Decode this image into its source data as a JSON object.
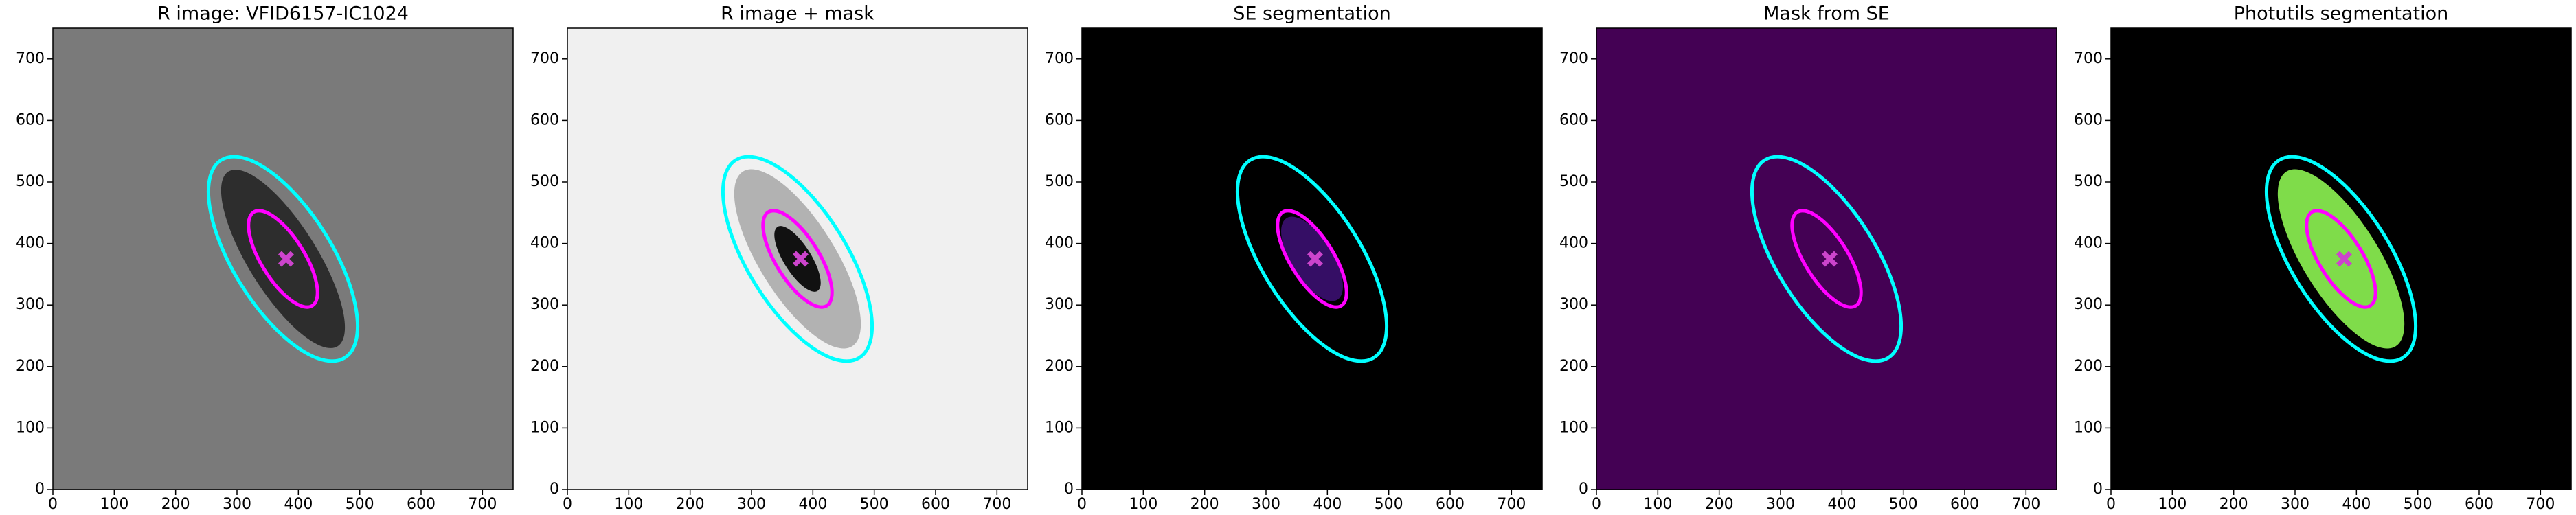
{
  "chart_data": [
    {
      "type": "image",
      "title": "R image: VFID6157-IC1024",
      "background": "#7a7a7a",
      "xlim": [
        0,
        750
      ],
      "ylim": [
        0,
        750
      ],
      "xticks": [
        0,
        100,
        200,
        300,
        400,
        500,
        600,
        700
      ],
      "yticks": [
        0,
        100,
        200,
        300,
        400,
        500,
        600,
        700
      ],
      "ellipses": [
        {
          "x": 375,
          "y": 375,
          "semi_major": 190,
          "semi_minor": 80,
          "angle": 122,
          "color": "#00ffff"
        },
        {
          "x": 375,
          "y": 375,
          "semi_major": 90,
          "semi_minor": 35,
          "angle": 122,
          "color": "#ff00ff"
        }
      ],
      "marker": {
        "x": 380,
        "y": 375,
        "color": "#cc44cc"
      }
    },
    {
      "type": "image",
      "title": "R image + mask",
      "background": "#f0f0f0",
      "xlim": [
        0,
        750
      ],
      "ylim": [
        0,
        750
      ],
      "xticks": [
        0,
        100,
        200,
        300,
        400,
        500,
        600,
        700
      ],
      "yticks": [
        0,
        100,
        200,
        300,
        400,
        500,
        600,
        700
      ],
      "ellipses": [
        {
          "x": 375,
          "y": 375,
          "semi_major": 190,
          "semi_minor": 80,
          "angle": 122,
          "color": "#00ffff"
        },
        {
          "x": 375,
          "y": 375,
          "semi_major": 90,
          "semi_minor": 35,
          "angle": 122,
          "color": "#ff00ff"
        }
      ],
      "marker": {
        "x": 380,
        "y": 375,
        "color": "#cc44cc"
      }
    },
    {
      "type": "image",
      "title": "SE segmentation",
      "background": "#000000",
      "xlim": [
        0,
        750
      ],
      "ylim": [
        0,
        750
      ],
      "xticks": [
        0,
        100,
        200,
        300,
        400,
        500,
        600,
        700
      ],
      "yticks": [
        0,
        100,
        200,
        300,
        400,
        500,
        600,
        700
      ],
      "ellipses": [
        {
          "x": 375,
          "y": 375,
          "semi_major": 190,
          "semi_minor": 80,
          "angle": 122,
          "color": "#00ffff"
        },
        {
          "x": 375,
          "y": 375,
          "semi_major": 90,
          "semi_minor": 35,
          "angle": 122,
          "color": "#ff00ff"
        }
      ],
      "marker": {
        "x": 380,
        "y": 375,
        "color": "#cc44cc"
      }
    },
    {
      "type": "image",
      "title": "Mask from SE",
      "background": "#440154",
      "xlim": [
        0,
        750
      ],
      "ylim": [
        0,
        750
      ],
      "xticks": [
        0,
        100,
        200,
        300,
        400,
        500,
        600,
        700
      ],
      "yticks": [
        0,
        100,
        200,
        300,
        400,
        500,
        600,
        700
      ],
      "ellipses": [
        {
          "x": 375,
          "y": 375,
          "semi_major": 190,
          "semi_minor": 80,
          "angle": 122,
          "color": "#00ffff"
        },
        {
          "x": 375,
          "y": 375,
          "semi_major": 90,
          "semi_minor": 35,
          "angle": 122,
          "color": "#ff00ff"
        }
      ],
      "marker": {
        "x": 380,
        "y": 375,
        "color": "#cc44cc"
      }
    },
    {
      "type": "image",
      "title": "Photutils segmentation",
      "background": "#000000",
      "xlim": [
        0,
        750
      ],
      "ylim": [
        0,
        750
      ],
      "xticks": [
        0,
        100,
        200,
        300,
        400,
        500,
        600,
        700
      ],
      "yticks": [
        0,
        100,
        200,
        300,
        400,
        500,
        600,
        700
      ],
      "ellipses": [
        {
          "x": 375,
          "y": 375,
          "semi_major": 190,
          "semi_minor": 80,
          "angle": 122,
          "color": "#00ffff"
        },
        {
          "x": 375,
          "y": 375,
          "semi_major": 90,
          "semi_minor": 35,
          "angle": 122,
          "color": "#ff00ff"
        }
      ],
      "marker": {
        "x": 380,
        "y": 375,
        "color": "#cc44cc"
      }
    }
  ]
}
